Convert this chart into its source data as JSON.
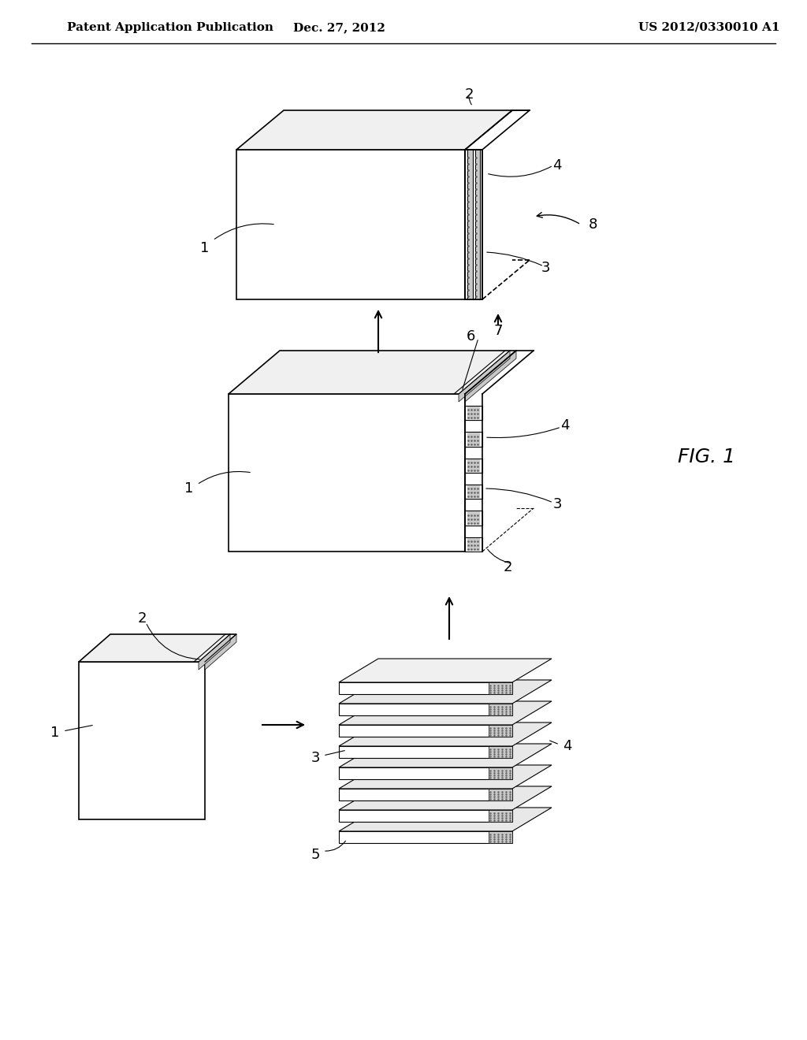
{
  "bg_color": "#ffffff",
  "line_color": "#000000",
  "header_left": "Patent Application Publication",
  "header_center": "Dec. 27, 2012",
  "header_right": "US 2012/0330010 A1",
  "fig_label": "FIG. 1",
  "header_fontsize": 11,
  "fig_label_fontsize": 18,
  "label_fontsize": 13
}
